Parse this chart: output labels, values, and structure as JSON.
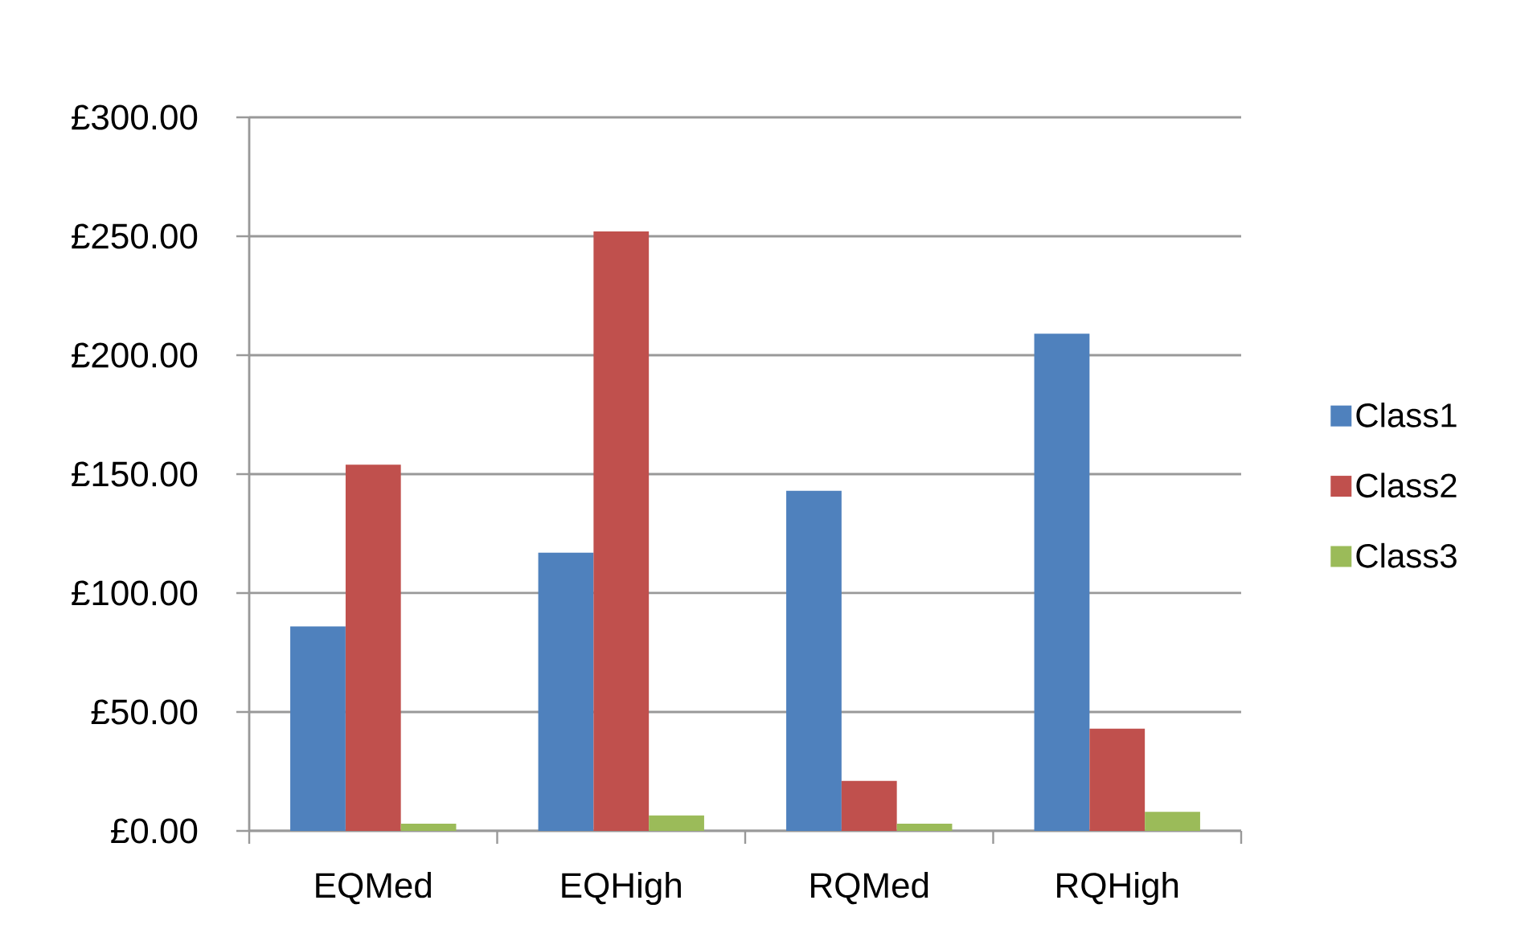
{
  "chart_data": {
    "type": "bar",
    "categories": [
      "EQMed",
      "EQHigh",
      "RQMed",
      "RQHigh"
    ],
    "series": [
      {
        "name": "Class1",
        "color": "#4f81bd",
        "values": [
          86,
          117,
          143,
          209
        ]
      },
      {
        "name": "Class2",
        "color": "#c0504d",
        "values": [
          154,
          252,
          21,
          43
        ]
      },
      {
        "name": "Class3",
        "color": "#9bbb59",
        "values": [
          3,
          6.5,
          3,
          8
        ]
      }
    ],
    "ylim": [
      0,
      300
    ],
    "yticks": [
      {
        "value": 0,
        "label": "£0.00"
      },
      {
        "value": 50,
        "label": "£50.00"
      },
      {
        "value": 100,
        "label": "£100.00"
      },
      {
        "value": 150,
        "label": "£150.00"
      },
      {
        "value": 200,
        "label": "£200.00"
      },
      {
        "value": 250,
        "label": "£250.00"
      },
      {
        "value": 300,
        "label": "£300.00"
      }
    ],
    "grid": "y",
    "legend": "right"
  }
}
